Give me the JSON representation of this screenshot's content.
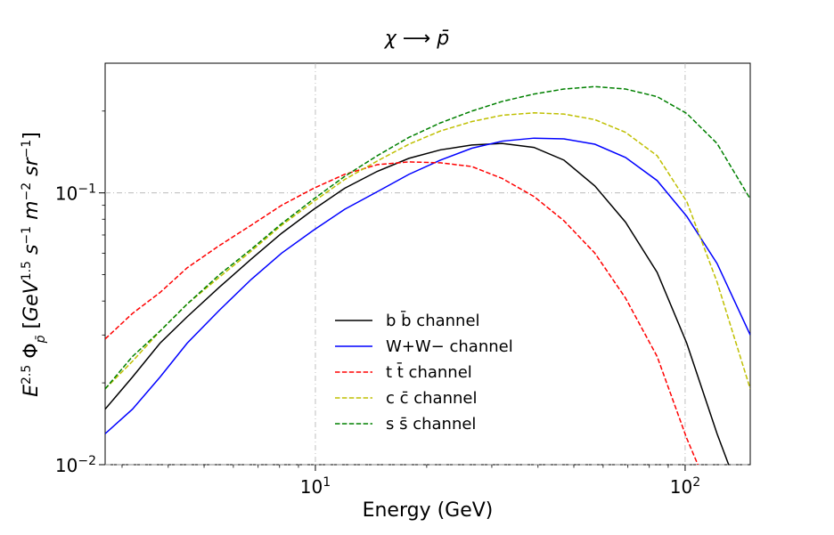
{
  "chart_data": {
    "type": "line",
    "title": "χ ⟶ p̄",
    "xlabel": "Energy (GeV)",
    "ylabel": "E^2.5 Φ_p̄ [GeV^1.5 s^-1 m^-2 sr^-1]",
    "xscale": "log",
    "yscale": "log",
    "xlim": [
      2.7,
      150
    ],
    "ylim": [
      0.01,
      0.3
    ],
    "grid": "dash-dot at major decades",
    "legend_position": "lower-center",
    "x_ticks": [
      {
        "value": 10,
        "base": "10",
        "exp": "1"
      },
      {
        "value": 100,
        "base": "10",
        "exp": "2"
      }
    ],
    "y_ticks": [
      {
        "value": 0.01,
        "base": "10",
        "exp": "−2"
      },
      {
        "value": 0.1,
        "base": "10",
        "exp": "−1"
      }
    ],
    "series": [
      {
        "name": "b b̄  channel",
        "color": "#000000",
        "dash": "solid",
        "points": [
          [
            2.7,
            0.016
          ],
          [
            3.2,
            0.021
          ],
          [
            3.8,
            0.028
          ],
          [
            4.5,
            0.035
          ],
          [
            5.5,
            0.045
          ],
          [
            6.7,
            0.057
          ],
          [
            8.1,
            0.071
          ],
          [
            9.9,
            0.087
          ],
          [
            12,
            0.104
          ],
          [
            14.7,
            0.12
          ],
          [
            17.9,
            0.134
          ],
          [
            21.8,
            0.144
          ],
          [
            26.5,
            0.15
          ],
          [
            32,
            0.152
          ],
          [
            39,
            0.147
          ],
          [
            47,
            0.132
          ],
          [
            57,
            0.106
          ],
          [
            69,
            0.078
          ],
          [
            84,
            0.051
          ],
          [
            101,
            0.028
          ],
          [
            122,
            0.013
          ],
          [
            133,
            0.0095
          ]
        ]
      },
      {
        "name": "W+W− channel",
        "color": "#0000ff",
        "dash": "solid",
        "points": [
          [
            2.7,
            0.013
          ],
          [
            3.2,
            0.016
          ],
          [
            3.8,
            0.021
          ],
          [
            4.5,
            0.028
          ],
          [
            5.5,
            0.037
          ],
          [
            6.7,
            0.048
          ],
          [
            8.1,
            0.06
          ],
          [
            9.9,
            0.073
          ],
          [
            12,
            0.087
          ],
          [
            14.7,
            0.101
          ],
          [
            17.9,
            0.117
          ],
          [
            21.8,
            0.132
          ],
          [
            26.5,
            0.146
          ],
          [
            32,
            0.155
          ],
          [
            39,
            0.159
          ],
          [
            47,
            0.158
          ],
          [
            57,
            0.151
          ],
          [
            69,
            0.135
          ],
          [
            84,
            0.111
          ],
          [
            101,
            0.082
          ],
          [
            122,
            0.055
          ],
          [
            150,
            0.03
          ]
        ]
      },
      {
        "name": "t t̄ channel",
        "color": "#ff0000",
        "dash": "dashed",
        "points": [
          [
            2.7,
            0.029
          ],
          [
            3.2,
            0.036
          ],
          [
            3.8,
            0.043
          ],
          [
            4.5,
            0.053
          ],
          [
            5.5,
            0.064
          ],
          [
            6.7,
            0.076
          ],
          [
            8.1,
            0.09
          ],
          [
            9.9,
            0.104
          ],
          [
            12,
            0.117
          ],
          [
            14.7,
            0.127
          ],
          [
            17.9,
            0.13
          ],
          [
            21.8,
            0.129
          ],
          [
            26.5,
            0.125
          ],
          [
            32,
            0.113
          ],
          [
            39,
            0.097
          ],
          [
            47,
            0.079
          ],
          [
            57,
            0.06
          ],
          [
            69,
            0.041
          ],
          [
            84,
            0.025
          ],
          [
            101,
            0.0125
          ],
          [
            110,
            0.0095
          ]
        ]
      },
      {
        "name": "c c̄ channel",
        "color": "#bfbf00",
        "dash": "dashed",
        "points": [
          [
            2.7,
            0.019
          ],
          [
            3.2,
            0.024
          ],
          [
            3.8,
            0.031
          ],
          [
            4.5,
            0.039
          ],
          [
            5.5,
            0.049
          ],
          [
            6.7,
            0.061
          ],
          [
            8.1,
            0.076
          ],
          [
            9.9,
            0.093
          ],
          [
            12,
            0.112
          ],
          [
            14.7,
            0.131
          ],
          [
            17.9,
            0.151
          ],
          [
            21.8,
            0.169
          ],
          [
            26.5,
            0.183
          ],
          [
            32,
            0.193
          ],
          [
            39,
            0.197
          ],
          [
            47,
            0.195
          ],
          [
            57,
            0.186
          ],
          [
            69,
            0.167
          ],
          [
            84,
            0.137
          ],
          [
            101,
            0.093
          ],
          [
            122,
            0.047
          ],
          [
            150,
            0.019
          ]
        ]
      },
      {
        "name": "s s̄ channel",
        "color": "#008000",
        "dash": "dashed",
        "points": [
          [
            2.7,
            0.019
          ],
          [
            3.2,
            0.025
          ],
          [
            3.8,
            0.031
          ],
          [
            4.5,
            0.039
          ],
          [
            5.5,
            0.05
          ],
          [
            6.7,
            0.062
          ],
          [
            8.1,
            0.077
          ],
          [
            9.9,
            0.095
          ],
          [
            12,
            0.115
          ],
          [
            14.7,
            0.137
          ],
          [
            17.9,
            0.16
          ],
          [
            21.8,
            0.181
          ],
          [
            26.5,
            0.2
          ],
          [
            32,
            0.217
          ],
          [
            39,
            0.231
          ],
          [
            47,
            0.241
          ],
          [
            57,
            0.246
          ],
          [
            69,
            0.241
          ],
          [
            84,
            0.226
          ],
          [
            101,
            0.196
          ],
          [
            122,
            0.152
          ],
          [
            150,
            0.095
          ]
        ]
      }
    ]
  }
}
